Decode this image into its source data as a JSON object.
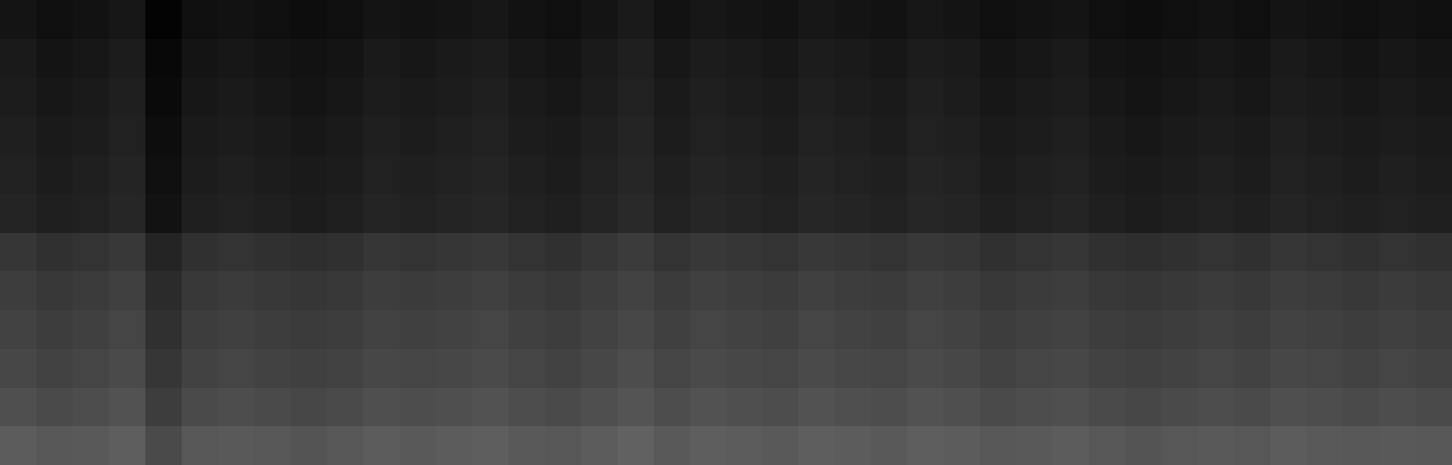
{
  "chart_data": {
    "type": "heatmap",
    "tick_labels": false,
    "color": "#ffffff",
    "color_range": [
      0,
      1
    ],
    "cells": [
      [
        0.36,
        0.34,
        0.35,
        0.37,
        0.29,
        0.34,
        0.35,
        0.34,
        0.33,
        0.34,
        0.36,
        0.35,
        0.36,
        0.37,
        0.35,
        0.34,
        0.36,
        0.38,
        0.35,
        0.37,
        0.36,
        0.35,
        0.37,
        0.36,
        0.35,
        0.37,
        0.36,
        0.34,
        0.35,
        0.36,
        0.34,
        0.33,
        0.34,
        0.35,
        0.34,
        0.36,
        0.35,
        0.34,
        0.35,
        0.34
      ],
      [
        0.31,
        0.29,
        0.3,
        0.32,
        0.24,
        0.29,
        0.3,
        0.29,
        0.28,
        0.29,
        0.31,
        0.3,
        0.31,
        0.32,
        0.3,
        0.29,
        0.31,
        0.33,
        0.3,
        0.32,
        0.31,
        0.3,
        0.32,
        0.31,
        0.3,
        0.32,
        0.31,
        0.29,
        0.3,
        0.31,
        0.29,
        0.28,
        0.29,
        0.3,
        0.29,
        0.31,
        0.3,
        0.29,
        0.3,
        0.29
      ],
      [
        0.28,
        0.26,
        0.27,
        0.29,
        0.21,
        0.26,
        0.27,
        0.26,
        0.25,
        0.26,
        0.28,
        0.27,
        0.28,
        0.29,
        0.27,
        0.26,
        0.28,
        0.3,
        0.27,
        0.29,
        0.28,
        0.27,
        0.29,
        0.28,
        0.27,
        0.29,
        0.28,
        0.26,
        0.27,
        0.28,
        0.26,
        0.25,
        0.26,
        0.27,
        0.26,
        0.28,
        0.27,
        0.26,
        0.27,
        0.26
      ],
      [
        0.26,
        0.24,
        0.25,
        0.27,
        0.19,
        0.24,
        0.25,
        0.24,
        0.23,
        0.24,
        0.26,
        0.25,
        0.26,
        0.27,
        0.25,
        0.24,
        0.26,
        0.28,
        0.25,
        0.27,
        0.26,
        0.25,
        0.27,
        0.26,
        0.25,
        0.27,
        0.26,
        0.24,
        0.25,
        0.26,
        0.24,
        0.23,
        0.24,
        0.25,
        0.24,
        0.26,
        0.25,
        0.24,
        0.25,
        0.24
      ],
      [
        0.24,
        0.22,
        0.23,
        0.25,
        0.17,
        0.22,
        0.23,
        0.22,
        0.21,
        0.22,
        0.24,
        0.23,
        0.24,
        0.25,
        0.23,
        0.22,
        0.24,
        0.26,
        0.23,
        0.25,
        0.24,
        0.23,
        0.25,
        0.24,
        0.23,
        0.25,
        0.24,
        0.22,
        0.23,
        0.24,
        0.22,
        0.21,
        0.22,
        0.23,
        0.22,
        0.24,
        0.23,
        0.22,
        0.23,
        0.22
      ],
      [
        0.21,
        0.19,
        0.2,
        0.22,
        0.14,
        0.19,
        0.2,
        0.19,
        0.18,
        0.19,
        0.21,
        0.2,
        0.21,
        0.22,
        0.2,
        0.19,
        0.21,
        0.23,
        0.2,
        0.22,
        0.21,
        0.2,
        0.22,
        0.21,
        0.2,
        0.22,
        0.21,
        0.19,
        0.2,
        0.21,
        0.19,
        0.18,
        0.19,
        0.2,
        0.19,
        0.21,
        0.2,
        0.19,
        0.2,
        0.19
      ],
      [
        0.14,
        0.12,
        0.13,
        0.15,
        0.07,
        0.12,
        0.13,
        0.12,
        0.11,
        0.12,
        0.14,
        0.13,
        0.14,
        0.15,
        0.13,
        0.12,
        0.14,
        0.16,
        0.13,
        0.15,
        0.14,
        0.13,
        0.15,
        0.14,
        0.13,
        0.15,
        0.14,
        0.12,
        0.13,
        0.14,
        0.12,
        0.11,
        0.12,
        0.13,
        0.12,
        0.14,
        0.13,
        0.12,
        0.13,
        0.12
      ],
      [
        0.13,
        0.11,
        0.12,
        0.14,
        0.06,
        0.11,
        0.12,
        0.11,
        0.1,
        0.11,
        0.13,
        0.12,
        0.13,
        0.14,
        0.12,
        0.11,
        0.13,
        0.15,
        0.12,
        0.14,
        0.13,
        0.12,
        0.14,
        0.13,
        0.12,
        0.14,
        0.13,
        0.11,
        0.12,
        0.13,
        0.11,
        0.1,
        0.11,
        0.12,
        0.11,
        0.13,
        0.12,
        0.11,
        0.12,
        0.11
      ],
      [
        0.12,
        0.1,
        0.11,
        0.13,
        0.05,
        0.1,
        0.11,
        0.1,
        0.09,
        0.1,
        0.12,
        0.11,
        0.12,
        0.13,
        0.11,
        0.1,
        0.12,
        0.14,
        0.11,
        0.13,
        0.12,
        0.11,
        0.13,
        0.12,
        0.11,
        0.13,
        0.12,
        0.1,
        0.11,
        0.12,
        0.1,
        0.09,
        0.1,
        0.11,
        0.1,
        0.12,
        0.11,
        0.1,
        0.11,
        0.1
      ],
      [
        0.11,
        0.09,
        0.1,
        0.12,
        0.04,
        0.09,
        0.1,
        0.09,
        0.08,
        0.09,
        0.11,
        0.1,
        0.11,
        0.12,
        0.1,
        0.09,
        0.11,
        0.13,
        0.1,
        0.12,
        0.11,
        0.1,
        0.12,
        0.11,
        0.1,
        0.12,
        0.11,
        0.09,
        0.1,
        0.11,
        0.09,
        0.08,
        0.09,
        0.1,
        0.09,
        0.11,
        0.1,
        0.09,
        0.1,
        0.09
      ],
      [
        0.1,
        0.08,
        0.09,
        0.11,
        0.03,
        0.08,
        0.09,
        0.08,
        0.07,
        0.08,
        0.1,
        0.09,
        0.1,
        0.11,
        0.09,
        0.08,
        0.1,
        0.12,
        0.09,
        0.11,
        0.1,
        0.09,
        0.11,
        0.1,
        0.09,
        0.11,
        0.1,
        0.08,
        0.09,
        0.1,
        0.08,
        0.07,
        0.08,
        0.09,
        0.08,
        0.1,
        0.09,
        0.08,
        0.09,
        0.08
      ],
      [
        0.08,
        0.06,
        0.07,
        0.09,
        0.01,
        0.06,
        0.07,
        0.06,
        0.05,
        0.06,
        0.08,
        0.07,
        0.08,
        0.09,
        0.07,
        0.06,
        0.08,
        0.1,
        0.07,
        0.09,
        0.08,
        0.07,
        0.09,
        0.08,
        0.07,
        0.09,
        0.08,
        0.06,
        0.07,
        0.08,
        0.06,
        0.05,
        0.06,
        0.07,
        0.06,
        0.08,
        0.07,
        0.06,
        0.07,
        0.06
      ]
    ]
  }
}
